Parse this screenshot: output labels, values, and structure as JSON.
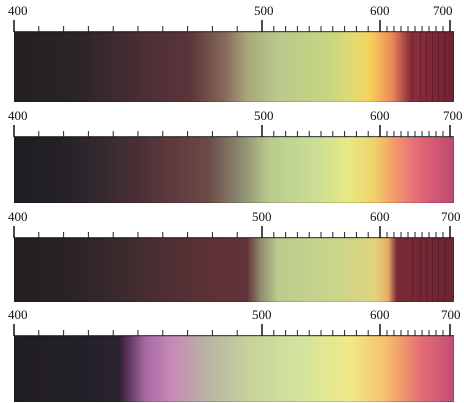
{
  "spectra": [
    {
      "labels": [
        "400",
        "500",
        "600",
        "700"
      ],
      "gradient": "linear-gradient(90deg, #232021 0%, #2a2426 14%, #3a2a2e 22%, #4e3036 31%, #5b353a 40%, #866a5a 48%, #a8a87a 53%, #b8c98c 60%, #c8d77f 72%, #e6db6e 78%, #f5d15c 81%, #f3a45a 84%, #e9875a 86%, #8d2d3c 90%, #7a2838 96%, #6b2433 100%)",
      "band_lines": true
    },
    {
      "labels": [
        "400",
        "500",
        "600",
        "700"
      ],
      "gradient": "linear-gradient(90deg, #1f1d22 0%, #262228 12%, #342a30 20%, #4a3036 28%, #5e3a3e 36%, #6a4a47 44%, #8f8e72 52%, #b9cb8d 58%, #c9dd94 68%, #e8e982 76%, #f0d06a 82%, #f3a06a 86%, #ec7777 90%, #d55a77 95%, #bb4a70 100%)",
      "band_lines": false
    },
    {
      "labels": [
        "400",
        "500",
        "600",
        "700"
      ],
      "gradient": "linear-gradient(90deg, #231f21 0%, #2b2325 14%, #3b2a2d 24%, #4e2f33 34%, #5e3137 44%, #62343a 53%, #8f8a70 56%, #bccb8e 60%, #c8d58c 72%, #e0d47e 82%, #e8ae67 85%, #7b2a35 87%, #6b2634 100%)",
      "band_lines": true
    },
    {
      "labels": [
        "400",
        "500",
        "600",
        "700"
      ],
      "gradient": "linear-gradient(90deg, #201d22 0%, #25212a 18%, #2b2430 24%, #4a2a4e 25%, #a86aa3 30%, #c78ab6 36%, #b8b4a4 44%, #c8d39a 54%, #cfe39e 64%, #f0ea88 76%, #f6c46e 84%, #f29a6b 88%, #e26a78 93%, #c24c72 100%)",
      "band_lines": false
    }
  ]
}
